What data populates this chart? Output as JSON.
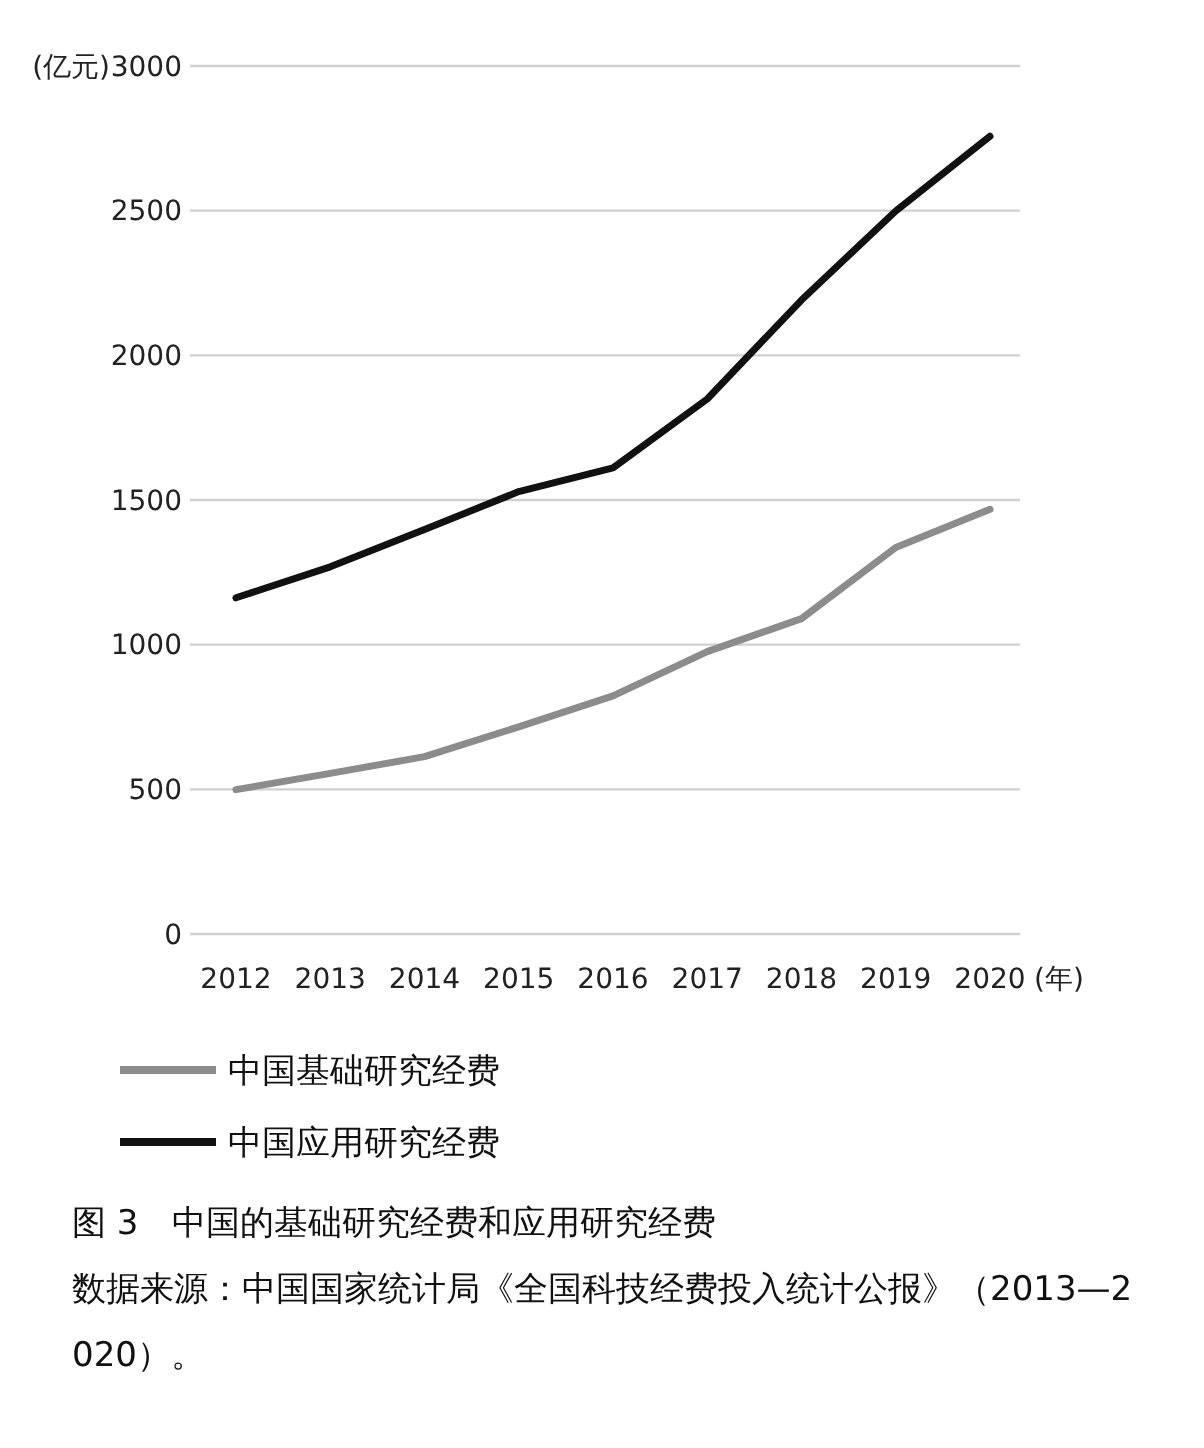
{
  "chart_data": {
    "type": "line",
    "xlabel": "(年)",
    "ylabel": "(亿元)",
    "categories": [
      "2012",
      "2013",
      "2014",
      "2015",
      "2016",
      "2017",
      "2018",
      "2019",
      "2020"
    ],
    "series": [
      {
        "name": "中国基础研究经费",
        "color": "#8c8c8c",
        "values": [
          499,
          555,
          613,
          716,
          823,
          976,
          1090,
          1336,
          1468
        ]
      },
      {
        "name": "中国应用研究经费",
        "color": "#111111",
        "values": [
          1162,
          1269,
          1398,
          1529,
          1611,
          1849,
          2191,
          2499,
          2757
        ]
      }
    ],
    "ylim": [
      0,
      3000
    ],
    "yticks": [
      0,
      500,
      1000,
      1500,
      2000,
      2500,
      3000
    ],
    "grid": "y",
    "legend": "bottom",
    "marker": "none",
    "line_style": "solid",
    "annotations": [
      "图 3　中国的基础研究经费和应用研究经费",
      "数据来源：中国国家统计局《全国科技经费投入统计公报》（2013—2020）。"
    ]
  }
}
